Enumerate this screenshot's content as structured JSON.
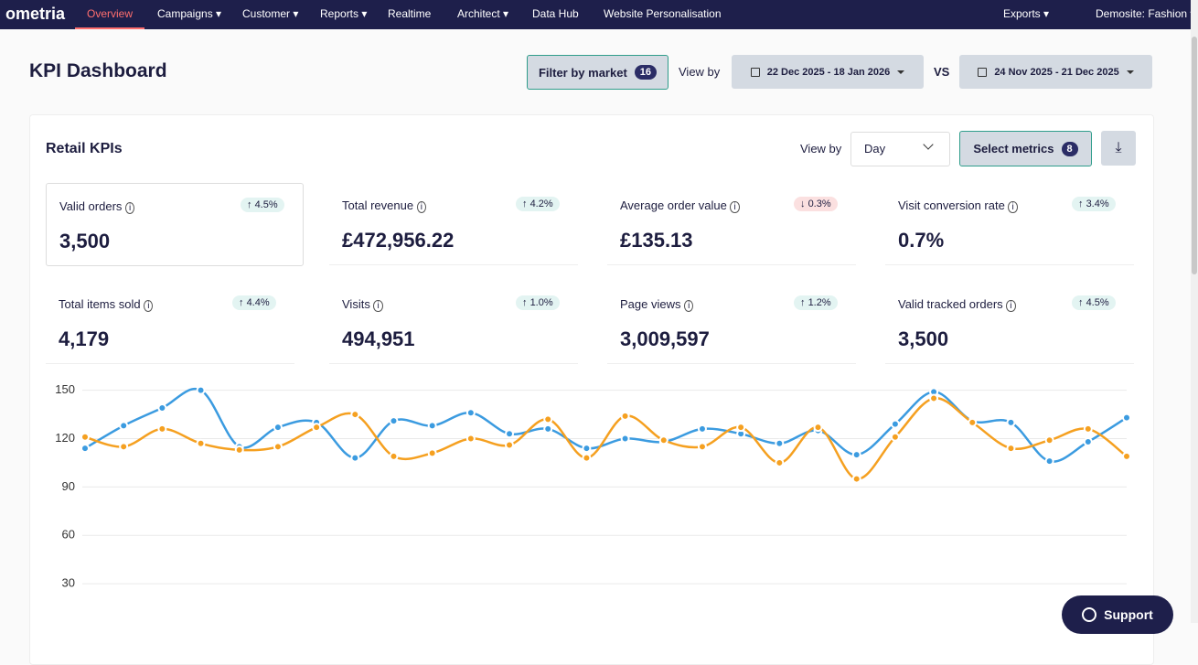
{
  "nav": {
    "logo": "ometria",
    "items": [
      {
        "label": "Overview",
        "active": true,
        "dropdown": false
      },
      {
        "label": "Campaigns",
        "active": false,
        "dropdown": true
      },
      {
        "label": "Customer",
        "active": false,
        "dropdown": true
      },
      {
        "label": "Reports",
        "active": false,
        "dropdown": true
      },
      {
        "label": "Realtime",
        "active": false,
        "dropdown": false
      },
      {
        "label": "Architect",
        "active": false,
        "dropdown": true
      },
      {
        "label": "Data Hub",
        "active": false,
        "dropdown": false
      },
      {
        "label": "Website Personalisation",
        "active": false,
        "dropdown": false
      }
    ],
    "right": [
      {
        "label": "Exports",
        "dropdown": true
      },
      {
        "label": "Demosite: Fashion",
        "dropdown": true
      }
    ]
  },
  "header": {
    "title": "KPI Dashboard",
    "filter_label": "Filter by market",
    "filter_count": "16",
    "view_by": "View by",
    "range": "22 Dec 2025 - 18 Jan 2026",
    "vs": "VS",
    "compare_range": "24 Nov 2025 - 21 Dec 2025"
  },
  "panel": {
    "title": "Retail KPIs",
    "view_by": "View by",
    "view_select": "Day",
    "metrics_label": "Select metrics",
    "metrics_count": "8"
  },
  "kpis": [
    {
      "label": "Valid orders",
      "change": "4.5%",
      "direction": "up",
      "value": "3,500"
    },
    {
      "label": "Total revenue",
      "change": "4.2%",
      "direction": "up",
      "value": "£472,956.22"
    },
    {
      "label": "Average order value",
      "change": "0.3%",
      "direction": "down",
      "value": "£135.13"
    },
    {
      "label": "Visit conversion rate",
      "change": "3.4%",
      "direction": "up",
      "value": "0.7%"
    },
    {
      "label": "Total items sold",
      "change": "4.4%",
      "direction": "up",
      "value": "4,179"
    },
    {
      "label": "Visits",
      "change": "1.0%",
      "direction": "up",
      "value": "494,951"
    },
    {
      "label": "Page views",
      "change": "1.2%",
      "direction": "up",
      "value": "3,009,597"
    },
    {
      "label": "Valid tracked orders",
      "change": "4.5%",
      "direction": "up",
      "value": "3,500"
    }
  ],
  "chart": {
    "type": "line",
    "ylim": [
      0,
      160
    ],
    "yticks": [
      150,
      120,
      90,
      60,
      30
    ],
    "grid": true,
    "series": [
      {
        "color": "#3b9be0",
        "values": [
          114,
          128,
          139,
          150,
          115,
          127,
          130,
          108,
          131,
          128,
          136,
          123,
          126,
          114,
          120,
          118,
          126,
          123,
          117,
          125,
          110,
          129,
          149,
          131,
          130,
          106,
          118,
          133
        ]
      },
      {
        "color": "#f5a020",
        "values": [
          121,
          115,
          126,
          117,
          113,
          115,
          127,
          135,
          109,
          111,
          120,
          116,
          132,
          108,
          134,
          119,
          115,
          127,
          105,
          127,
          95,
          121,
          145,
          130,
          114,
          119,
          126,
          109
        ]
      }
    ]
  },
  "support": "Support"
}
